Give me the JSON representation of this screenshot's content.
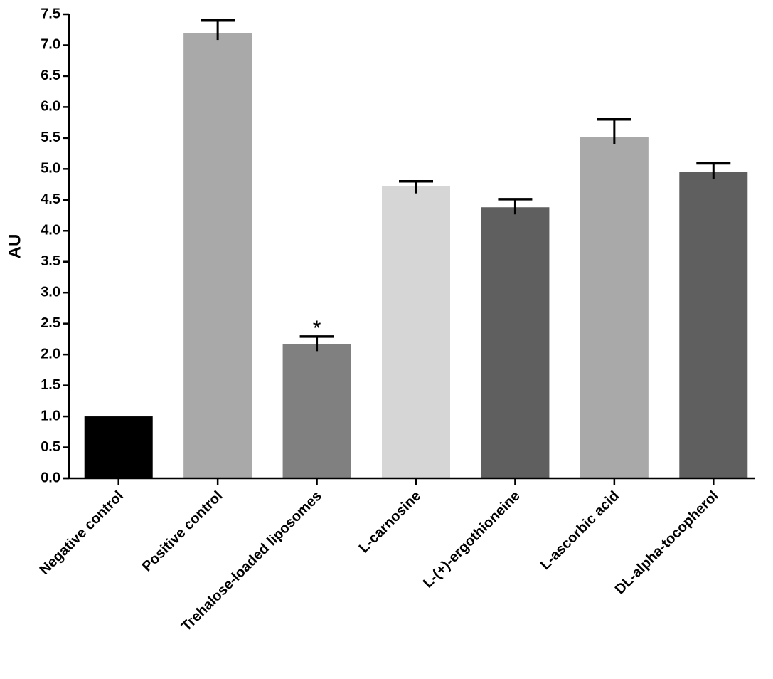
{
  "chart_data": {
    "type": "bar",
    "y_label": "AU",
    "categories": [
      "Negative control",
      "Positive control",
      "Trehalose-loaded liposomes",
      "L-carnosine",
      "L-(+)-ergothioneine",
      "L-ascorbic acid",
      "DL-alpha-tocopherol"
    ],
    "values": [
      1.0,
      7.2,
      2.17,
      4.72,
      4.38,
      5.51,
      4.95
    ],
    "errors": [
      null,
      0.2,
      0.12,
      0.08,
      0.13,
      0.29,
      0.14
    ],
    "colors": [
      "#000000",
      "#a9a9a9",
      "#808080",
      "#d6d6d6",
      "#5f5f5f",
      "#a9a9a9",
      "#5f5f5f"
    ],
    "annotations": [
      {
        "text": "*",
        "category": "Trehalose-loaded liposomes"
      }
    ],
    "ylim": [
      0,
      7.5
    ],
    "yticks": [
      {
        "value": 0,
        "label": "0.0"
      },
      0.5,
      {
        "value": 1,
        "label": "1.0"
      },
      1.5,
      {
        "value": 2,
        "label": "2.0"
      },
      2.5,
      {
        "value": 3,
        "label": "3.0"
      },
      3.5,
      {
        "value": 4,
        "label": "4.0"
      },
      4.5,
      {
        "value": 5,
        "label": "5.0"
      },
      5.5,
      {
        "value": 6,
        "label": "6.0"
      },
      6.5,
      {
        "value": 7,
        "label": "7.0"
      },
      7.5
    ],
    "grid": false
  }
}
